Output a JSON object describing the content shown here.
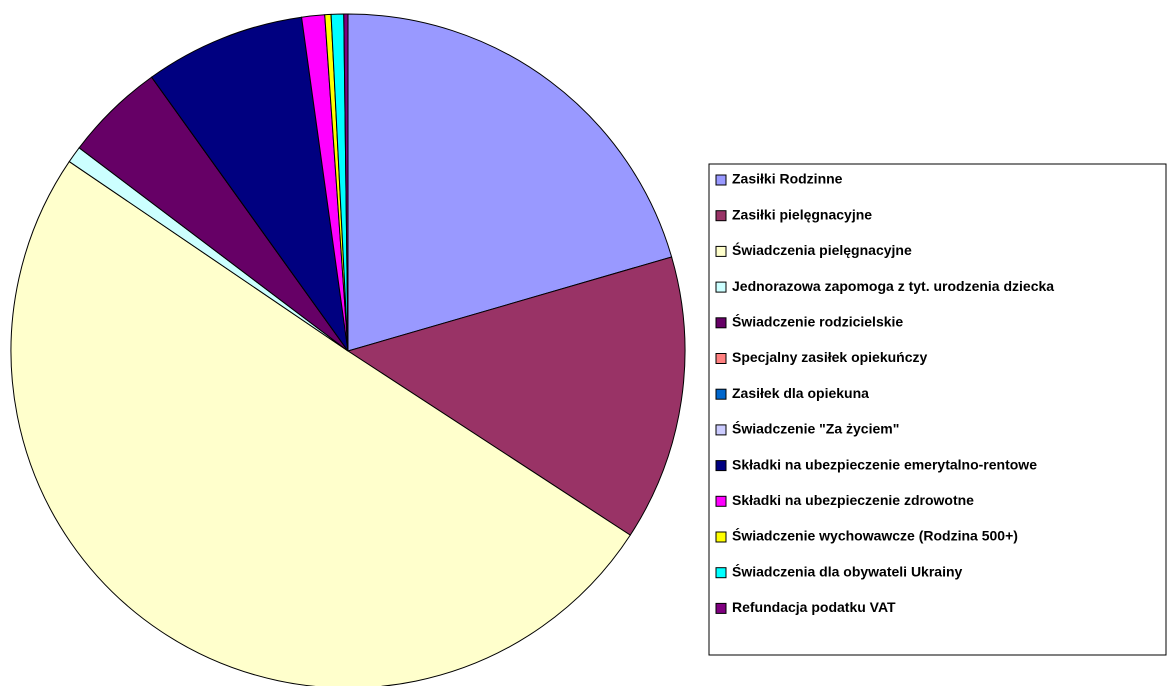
{
  "chart_data": {
    "type": "pie",
    "categories": [
      "Zasiłki Rodzinne",
      "Zasiłki pielęgnacyjne",
      "Świadczenia pielęgnacyjne",
      "Jednorazowa zapomoga z tyt. urodzenia dziecka",
      "Świadczenie rodzicielskie",
      "Specjalny zasiłek opiekuńczy",
      "Zasiłek dla opiekuna",
      "Świadczenie \"Za życiem\"",
      "Składki na ubezpieczenie emerytalno-rentowe",
      "Składki na ubezpieczenie zdrowotne",
      "Świadczenie wychowawcze (Rodzina 500+)",
      "Świadczenia dla obywateli Ukrainy",
      "Refundacja podatku VAT"
    ],
    "values": [
      20.5,
      13.7,
      50.3,
      0.8,
      4.8,
      0,
      0,
      0,
      7.7,
      1.1,
      0.3,
      0.6,
      0.2
    ],
    "colors": [
      "#9999FF",
      "#993366",
      "#FFFFCC",
      "#CCFFFF",
      "#660066",
      "#FF8080",
      "#0066CC",
      "#CCCCFF",
      "#000080",
      "#FF00FF",
      "#FFFF00",
      "#00FFFF",
      "#800080"
    ],
    "legend": "right"
  }
}
